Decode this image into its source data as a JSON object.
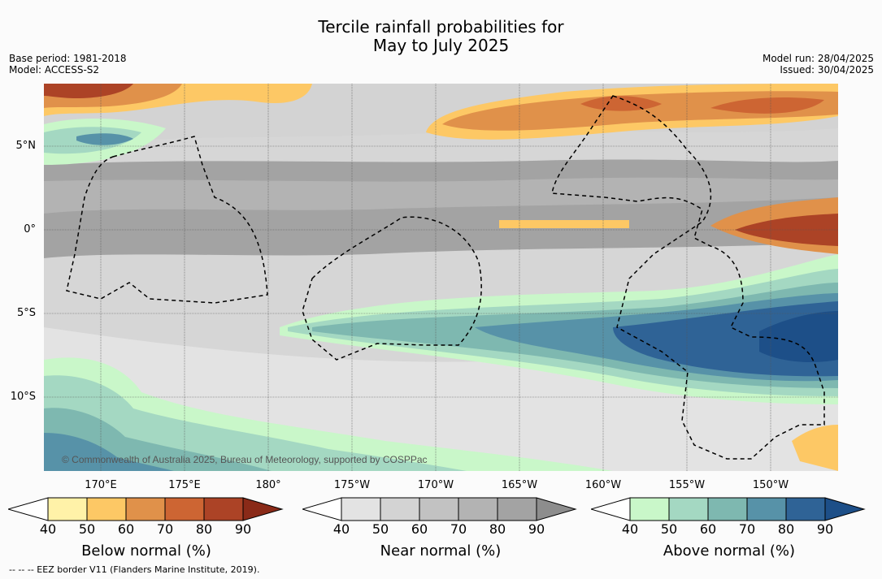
{
  "title_line1": "Tercile rainfall probabilities for",
  "title_line2": "May to July 2025",
  "meta": {
    "base_period": "Base period: 1981-2018",
    "model": "Model: ACCESS-S2",
    "model_run": "Model run: 28/04/2025",
    "issued": "Issued: 30/04/2025"
  },
  "map": {
    "credit": "© Commonwealth of Australia 2025, Bureau of Meteorology, supported by COSPPac",
    "lat_labels": [
      "5°N",
      "0°",
      "5°S",
      "10°S"
    ],
    "lon_labels": [
      "170°E",
      "175°E",
      "180°",
      "175°W",
      "170°W",
      "165°W",
      "160°W",
      "155°W",
      "150°W"
    ]
  },
  "colorbars": [
    {
      "label": "Below normal (%)",
      "ticks": [
        "40",
        "50",
        "60",
        "70",
        "80",
        "90"
      ],
      "colors": [
        "#fff2a8",
        "#fdc865",
        "#e0914a",
        "#cd6533",
        "#ac4326",
        "#8a2a18"
      ]
    },
    {
      "label": "Near normal (%)",
      "ticks": [
        "40",
        "50",
        "60",
        "70",
        "80",
        "90"
      ],
      "colors": [
        "#e3e3e3",
        "#d3d3d3",
        "#c2c2c2",
        "#b3b3b3",
        "#a3a3a3",
        "#8d8d8d"
      ]
    },
    {
      "label": "Above normal (%)",
      "ticks": [
        "40",
        "50",
        "60",
        "70",
        "80",
        "90"
      ],
      "colors": [
        "#c9f7c9",
        "#a4d8c2",
        "#7eb8b0",
        "#5792a8",
        "#2f6396",
        "#1d4f88"
      ]
    }
  ],
  "footer": "--  --  -- EEZ border V11 (Flanders Marine Institute, 2019)."
}
